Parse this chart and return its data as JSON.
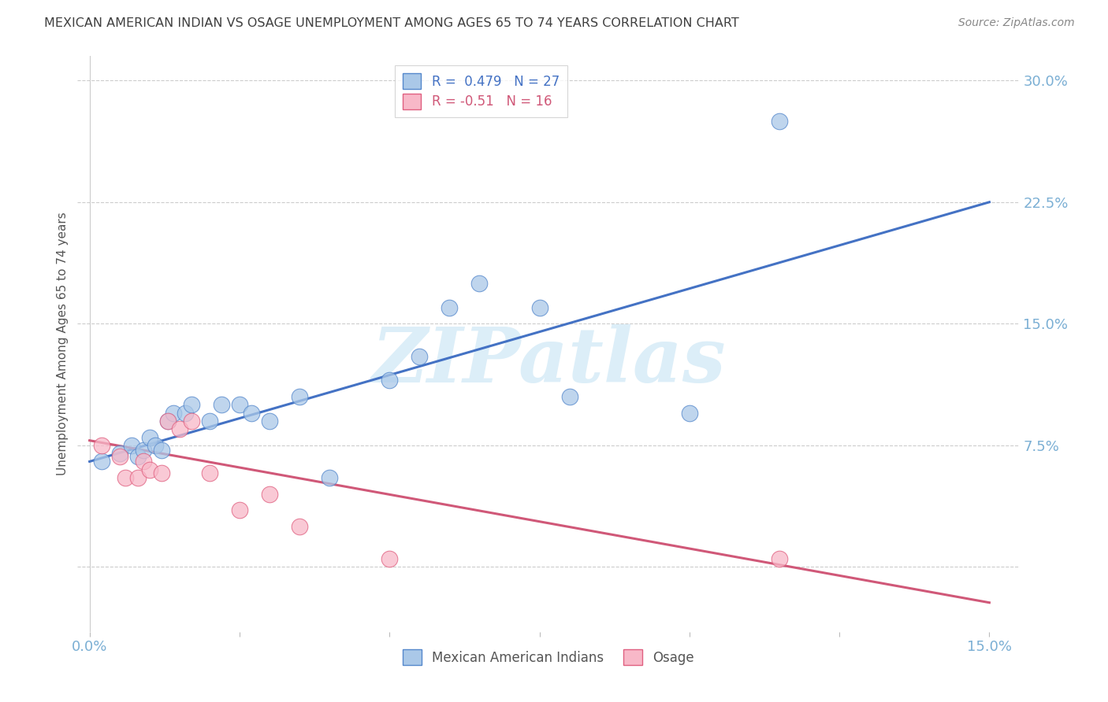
{
  "title": "MEXICAN AMERICAN INDIAN VS OSAGE UNEMPLOYMENT AMONG AGES 65 TO 74 YEARS CORRELATION CHART",
  "source": "Source: ZipAtlas.com",
  "ylabel": "Unemployment Among Ages 65 to 74 years",
  "xlim": [
    -0.002,
    0.155
  ],
  "ylim": [
    -0.04,
    0.315
  ],
  "xplot_min": 0.0,
  "xplot_max": 0.15,
  "yplot_min": 0.0,
  "yplot_max": 0.3,
  "xticks": [
    0.0,
    0.025,
    0.05,
    0.075,
    0.1,
    0.125,
    0.15
  ],
  "xtick_labels": [
    "0.0%",
    "",
    "",
    "",
    "",
    "",
    "15.0%"
  ],
  "ytick_positions": [
    0.0,
    0.075,
    0.15,
    0.225,
    0.3
  ],
  "ytick_labels": [
    "",
    "7.5%",
    "15.0%",
    "22.5%",
    "30.0%"
  ],
  "blue_scatter_x": [
    0.002,
    0.005,
    0.007,
    0.008,
    0.009,
    0.01,
    0.011,
    0.012,
    0.013,
    0.014,
    0.016,
    0.017,
    0.02,
    0.022,
    0.025,
    0.027,
    0.03,
    0.035,
    0.04,
    0.05,
    0.055,
    0.06,
    0.065,
    0.075,
    0.08,
    0.1,
    0.115
  ],
  "blue_scatter_y": [
    0.065,
    0.07,
    0.075,
    0.068,
    0.072,
    0.08,
    0.075,
    0.072,
    0.09,
    0.095,
    0.095,
    0.1,
    0.09,
    0.1,
    0.1,
    0.095,
    0.09,
    0.105,
    0.055,
    0.115,
    0.13,
    0.16,
    0.175,
    0.16,
    0.105,
    0.095,
    0.275
  ],
  "pink_scatter_x": [
    0.002,
    0.005,
    0.006,
    0.008,
    0.009,
    0.01,
    0.012,
    0.013,
    0.015,
    0.017,
    0.02,
    0.025,
    0.03,
    0.035,
    0.05,
    0.115
  ],
  "pink_scatter_y": [
    0.075,
    0.068,
    0.055,
    0.055,
    0.065,
    0.06,
    0.058,
    0.09,
    0.085,
    0.09,
    0.058,
    0.035,
    0.045,
    0.025,
    0.005,
    0.005
  ],
  "blue_R": 0.479,
  "blue_N": 27,
  "pink_R": -0.51,
  "pink_N": 16,
  "blue_line_x0": 0.0,
  "blue_line_y0": 0.065,
  "blue_line_x1": 0.15,
  "blue_line_y1": 0.225,
  "pink_line_x0": 0.0,
  "pink_line_y0": 0.078,
  "pink_line_x1": 0.15,
  "pink_line_y1": -0.022,
  "blue_fill_color": "#aac8e8",
  "blue_edge_color": "#5588cc",
  "pink_fill_color": "#f8b8c8",
  "pink_edge_color": "#e06080",
  "blue_line_color": "#4472c4",
  "pink_line_color": "#d05878",
  "grid_color": "#cccccc",
  "title_color": "#404040",
  "ylabel_color": "#555555",
  "tick_color": "#7bafd4",
  "source_color": "#888888",
  "watermark_color": "#dceef8",
  "background_color": "#ffffff",
  "legend_edge_color": "#cccccc",
  "bottom_legend_label_blue": "Mexican American Indians",
  "bottom_legend_label_pink": "Osage"
}
